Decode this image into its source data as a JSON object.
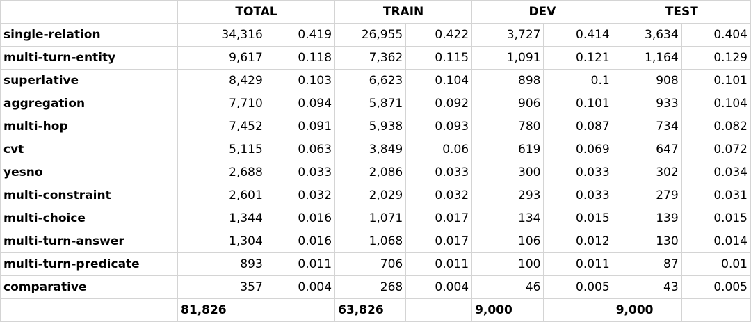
{
  "table": {
    "headers": [
      "TOTAL",
      "TRAIN",
      "DEV",
      "TEST"
    ],
    "rows": [
      {
        "label": "single-relation",
        "values": [
          "34,316",
          "0.419",
          "26,955",
          "0.422",
          "3,727",
          "0.414",
          "3,634",
          "0.404"
        ]
      },
      {
        "label": "multi-turn-entity",
        "values": [
          "9,617",
          "0.118",
          "7,362",
          "0.115",
          "1,091",
          "0.121",
          "1,164",
          "0.129"
        ]
      },
      {
        "label": "superlative",
        "values": [
          "8,429",
          "0.103",
          "6,623",
          "0.104",
          "898",
          "0.1",
          "908",
          "0.101"
        ]
      },
      {
        "label": "aggregation",
        "values": [
          "7,710",
          "0.094",
          "5,871",
          "0.092",
          "906",
          "0.101",
          "933",
          "0.104"
        ]
      },
      {
        "label": "multi-hop",
        "values": [
          "7,452",
          "0.091",
          "5,938",
          "0.093",
          "780",
          "0.087",
          "734",
          "0.082"
        ]
      },
      {
        "label": "cvt",
        "values": [
          "5,115",
          "0.063",
          "3,849",
          "0.06",
          "619",
          "0.069",
          "647",
          "0.072"
        ]
      },
      {
        "label": "yesno",
        "values": [
          "2,688",
          "0.033",
          "2,086",
          "0.033",
          "300",
          "0.033",
          "302",
          "0.034"
        ]
      },
      {
        "label": "multi-constraint",
        "values": [
          "2,601",
          "0.032",
          "2,029",
          "0.032",
          "293",
          "0.033",
          "279",
          "0.031"
        ]
      },
      {
        "label": "multi-choice",
        "values": [
          "1,344",
          "0.016",
          "1,071",
          "0.017",
          "134",
          "0.015",
          "139",
          "0.015"
        ]
      },
      {
        "label": "multi-turn-answer",
        "values": [
          "1,304",
          "0.016",
          "1,068",
          "0.017",
          "106",
          "0.012",
          "130",
          "0.014"
        ]
      },
      {
        "label": "multi-turn-predicate",
        "values": [
          "893",
          "0.011",
          "706",
          "0.011",
          "100",
          "0.011",
          "87",
          "0.01"
        ]
      },
      {
        "label": "comparative",
        "values": [
          "357",
          "0.004",
          "268",
          "0.004",
          "46",
          "0.005",
          "43",
          "0.005"
        ]
      }
    ],
    "totals": [
      "81,826",
      "63,826",
      "9,000",
      "9,000"
    ]
  }
}
